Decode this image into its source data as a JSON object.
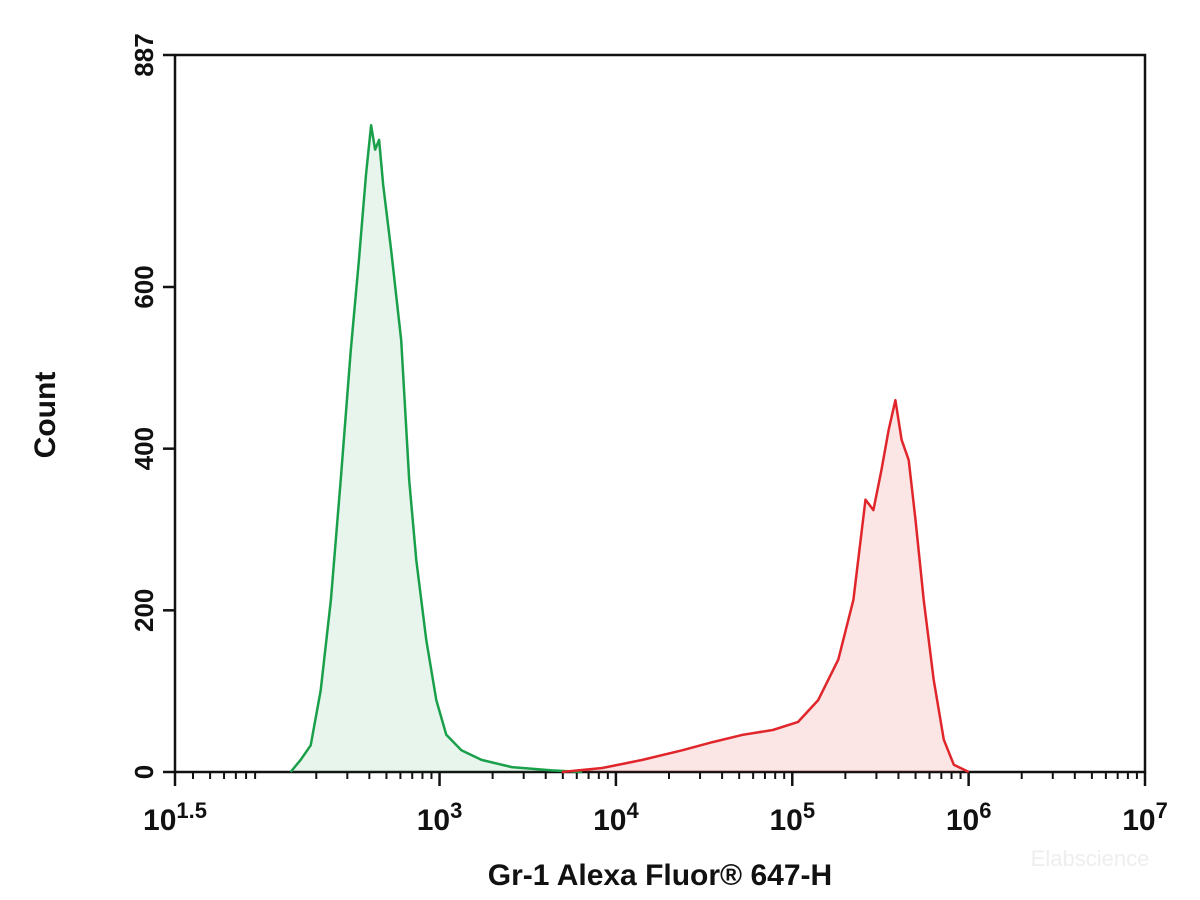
{
  "chart_data": {
    "type": "histogram-overlay",
    "xlabel": "Gr-1 Alexa Fluor® 647-H",
    "ylabel": "Count",
    "watermark": "Elabscience",
    "xscale": "log",
    "xlim": [
      31.6228,
      10000000
    ],
    "xticks": [
      {
        "value": 31.6228,
        "label": "10",
        "exponent": "1.5"
      },
      {
        "value": 1000,
        "label": "10",
        "exponent": "3"
      },
      {
        "value": 10000,
        "label": "10",
        "exponent": "4"
      },
      {
        "value": 100000,
        "label": "10",
        "exponent": "5"
      },
      {
        "value": 1000000,
        "label": "10",
        "exponent": "6"
      },
      {
        "value": 10000000,
        "label": "10",
        "exponent": "7"
      }
    ],
    "ylim": [
      0,
      887
    ],
    "yticks": [
      0,
      200,
      400,
      600,
      887
    ],
    "series": [
      {
        "color": "#1aa04a",
        "fill": "rgba(26,160,74,0.10)",
        "x": [
          143,
          163,
          186,
          212,
          242,
          275,
          314,
          349,
          383,
          409,
          431,
          454,
          479,
          531,
          606,
          673,
          738,
          841,
          958,
          1092,
          1330,
          1730,
          2564,
          4335,
          6430
        ],
        "values": [
          0,
          15,
          33,
          101,
          213,
          361,
          522,
          633,
          739,
          800,
          770,
          782,
          726,
          646,
          534,
          361,
          262,
          163,
          89,
          46,
          27,
          15,
          6,
          2,
          0
        ]
      },
      {
        "color": "#e0262b",
        "fill": "rgba(224,38,43,0.12)",
        "x": [
          4943,
          8356,
          14130,
          23880,
          35330,
          52360,
          77600,
          107900,
          140300,
          182400,
          222000,
          260000,
          288400,
          320600,
          351600,
          384600,
          416900,
          457100,
          500000,
          555900,
          633900,
          722700,
          824100,
          1002000
        ],
        "values": [
          0,
          5,
          15,
          27,
          37,
          46,
          52,
          62,
          89,
          139,
          213,
          337,
          324,
          374,
          423,
          460,
          411,
          386,
          312,
          213,
          114,
          40,
          9,
          0
        ]
      }
    ]
  }
}
